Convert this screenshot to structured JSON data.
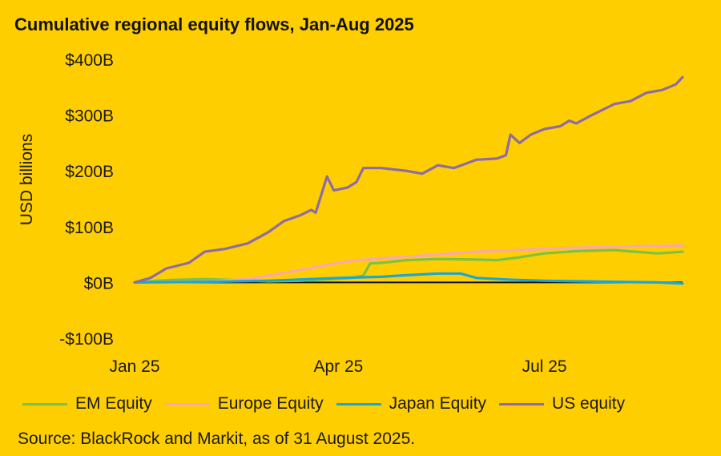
{
  "title": "Cumulative regional equity flows, Jan-Aug 2025",
  "source": "Source: BlackRock and Markit, as of 31 August 2025.",
  "colors": {
    "background": "#FFCE00",
    "em": "#7DC242",
    "europe": "#F9A7B0",
    "japan": "#1BA7D6",
    "us": "#8E6BA8",
    "zero_line": "#111111"
  },
  "chart_data": {
    "type": "line",
    "title": "Cumulative regional equity flows, Jan-Aug 2025",
    "ylabel": "USD billions",
    "xlabel": "",
    "ylim": [
      -100,
      400
    ],
    "yticks": [
      {
        "value": 400,
        "label": "$400B"
      },
      {
        "value": 300,
        "label": "$300B"
      },
      {
        "value": 200,
        "label": "$200B"
      },
      {
        "value": 100,
        "label": "$100B"
      },
      {
        "value": 0,
        "label": "$0B"
      },
      {
        "value": -100,
        "label": "-$100B"
      }
    ],
    "xlim": [
      "2025-01-01",
      "2025-08-31"
    ],
    "xticks": [
      {
        "value": "2025-01-01",
        "label": "Jan 25"
      },
      {
        "value": "2025-04-01",
        "label": "Apr 25"
      },
      {
        "value": "2025-07-01",
        "label": "Jul 25"
      }
    ],
    "grid": false,
    "legend_position": "bottom",
    "series": [
      {
        "name": "EM Equity",
        "color": "#7DC242",
        "points": [
          [
            "2025-01-01",
            0
          ],
          [
            "2025-01-15",
            4
          ],
          [
            "2025-02-01",
            6
          ],
          [
            "2025-02-15",
            4
          ],
          [
            "2025-03-01",
            2
          ],
          [
            "2025-03-15",
            3
          ],
          [
            "2025-03-25",
            5
          ],
          [
            "2025-04-07",
            8
          ],
          [
            "2025-04-12",
            12
          ],
          [
            "2025-04-15",
            34
          ],
          [
            "2025-04-20",
            35
          ],
          [
            "2025-05-01",
            40
          ],
          [
            "2025-05-15",
            42
          ],
          [
            "2025-06-01",
            41
          ],
          [
            "2025-06-10",
            40
          ],
          [
            "2025-06-20",
            45
          ],
          [
            "2025-07-01",
            52
          ],
          [
            "2025-07-15",
            56
          ],
          [
            "2025-08-01",
            58
          ],
          [
            "2025-08-10",
            55
          ],
          [
            "2025-08-20",
            52
          ],
          [
            "2025-08-31",
            55
          ]
        ]
      },
      {
        "name": "Europe Equity",
        "color": "#F9A7B0",
        "points": [
          [
            "2025-01-01",
            0
          ],
          [
            "2025-01-20",
            1
          ],
          [
            "2025-02-05",
            2
          ],
          [
            "2025-02-20",
            6
          ],
          [
            "2025-03-01",
            12
          ],
          [
            "2025-03-15",
            22
          ],
          [
            "2025-04-01",
            35
          ],
          [
            "2025-04-10",
            40
          ],
          [
            "2025-05-01",
            46
          ],
          [
            "2025-05-15",
            50
          ],
          [
            "2025-06-01",
            55
          ],
          [
            "2025-06-15",
            57
          ],
          [
            "2025-07-01",
            60
          ],
          [
            "2025-07-15",
            62
          ],
          [
            "2025-08-01",
            64
          ],
          [
            "2025-08-15",
            65
          ],
          [
            "2025-08-31",
            66
          ]
        ]
      },
      {
        "name": "Japan Equity",
        "color": "#1BA7D6",
        "points": [
          [
            "2025-01-01",
            0
          ],
          [
            "2025-02-01",
            1
          ],
          [
            "2025-03-01",
            3
          ],
          [
            "2025-03-20",
            6
          ],
          [
            "2025-04-01",
            8
          ],
          [
            "2025-04-20",
            10
          ],
          [
            "2025-05-01",
            13
          ],
          [
            "2025-05-15",
            16
          ],
          [
            "2025-05-25",
            16
          ],
          [
            "2025-06-01",
            8
          ],
          [
            "2025-06-15",
            5
          ],
          [
            "2025-07-01",
            3
          ],
          [
            "2025-07-15",
            2
          ],
          [
            "2025-08-01",
            1
          ],
          [
            "2025-08-20",
            0
          ],
          [
            "2025-08-31",
            -2
          ]
        ]
      },
      {
        "name": "US equity",
        "color": "#8E6BA8",
        "points": [
          [
            "2025-01-01",
            0
          ],
          [
            "2025-01-08",
            8
          ],
          [
            "2025-01-15",
            25
          ],
          [
            "2025-01-25",
            35
          ],
          [
            "2025-02-01",
            55
          ],
          [
            "2025-02-10",
            60
          ],
          [
            "2025-02-20",
            70
          ],
          [
            "2025-03-01",
            90
          ],
          [
            "2025-03-08",
            110
          ],
          [
            "2025-03-15",
            120
          ],
          [
            "2025-03-20",
            130
          ],
          [
            "2025-03-22",
            125
          ],
          [
            "2025-03-27",
            190
          ],
          [
            "2025-03-30",
            165
          ],
          [
            "2025-04-05",
            170
          ],
          [
            "2025-04-09",
            180
          ],
          [
            "2025-04-12",
            205
          ],
          [
            "2025-04-20",
            205
          ],
          [
            "2025-05-01",
            200
          ],
          [
            "2025-05-08",
            195
          ],
          [
            "2025-05-15",
            210
          ],
          [
            "2025-05-22",
            205
          ],
          [
            "2025-06-01",
            220
          ],
          [
            "2025-06-10",
            222
          ],
          [
            "2025-06-14",
            228
          ],
          [
            "2025-06-16",
            265
          ],
          [
            "2025-06-20",
            250
          ],
          [
            "2025-06-25",
            265
          ],
          [
            "2025-07-01",
            275
          ],
          [
            "2025-07-08",
            280
          ],
          [
            "2025-07-12",
            290
          ],
          [
            "2025-07-15",
            285
          ],
          [
            "2025-07-22",
            300
          ],
          [
            "2025-08-01",
            320
          ],
          [
            "2025-08-08",
            325
          ],
          [
            "2025-08-15",
            340
          ],
          [
            "2025-08-22",
            345
          ],
          [
            "2025-08-28",
            355
          ],
          [
            "2025-08-31",
            368
          ]
        ]
      }
    ]
  }
}
